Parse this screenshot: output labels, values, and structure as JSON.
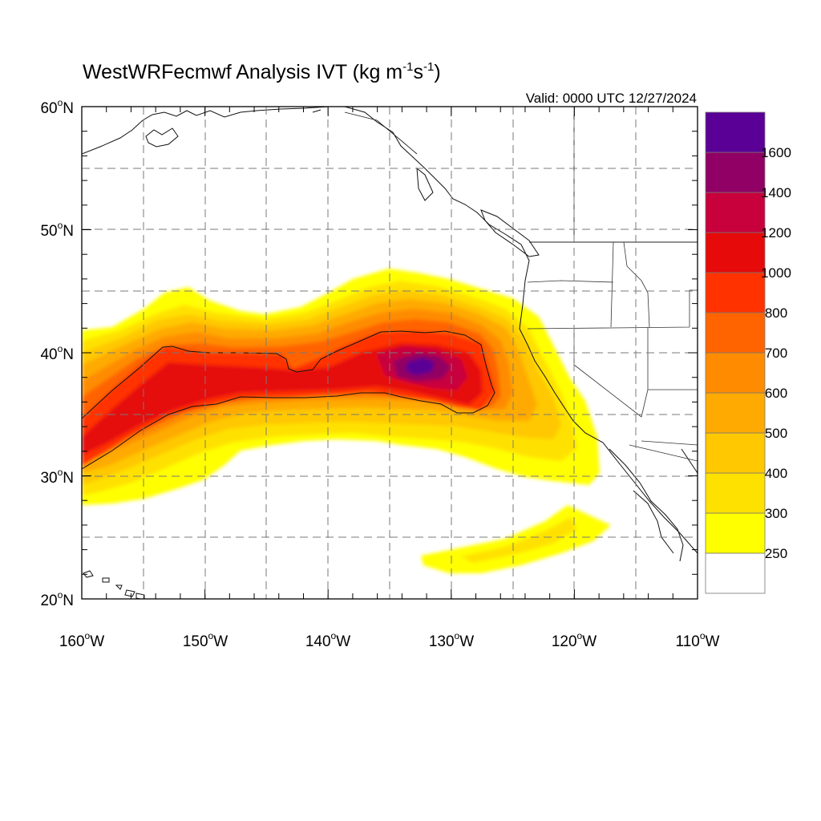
{
  "title": {
    "prefix": "WestWRFecmwf Analysis IVT (kg m",
    "sup1": "-1",
    "mid": "s",
    "sup2": "-1",
    "suffix": ")"
  },
  "valid_time": "Valid: 0000 UTC 12/27/2024",
  "map": {
    "lon_range": [
      -160,
      -110
    ],
    "lat_range": [
      20,
      60
    ],
    "lat_ticks": [
      {
        "deg": "60",
        "unit": "o",
        "hem": "N"
      },
      {
        "deg": "50",
        "unit": "o",
        "hem": "N"
      },
      {
        "deg": "40",
        "unit": "o",
        "hem": "N"
      },
      {
        "deg": "30",
        "unit": "o",
        "hem": "N"
      },
      {
        "deg": "20",
        "unit": "o",
        "hem": "N"
      }
    ],
    "lon_ticks": [
      {
        "deg": "160",
        "unit": "o",
        "hem": "W"
      },
      {
        "deg": "150",
        "unit": "o",
        "hem": "W"
      },
      {
        "deg": "140",
        "unit": "o",
        "hem": "W"
      },
      {
        "deg": "130",
        "unit": "o",
        "hem": "W"
      },
      {
        "deg": "120",
        "unit": "o",
        "hem": "W"
      },
      {
        "deg": "110",
        "unit": "o",
        "hem": "W"
      }
    ]
  },
  "colorbar": {
    "colors": [
      "#ffffff",
      "#ffff00",
      "#ffe100",
      "#ffc800",
      "#ffaa00",
      "#ff8c00",
      "#ff6400",
      "#ff3200",
      "#e60a0a",
      "#c8003c",
      "#910064",
      "#5a0096"
    ],
    "labels": [
      "250",
      "300",
      "400",
      "500",
      "600",
      "700",
      "800",
      "1000",
      "1200",
      "1400",
      "1600"
    ]
  }
}
